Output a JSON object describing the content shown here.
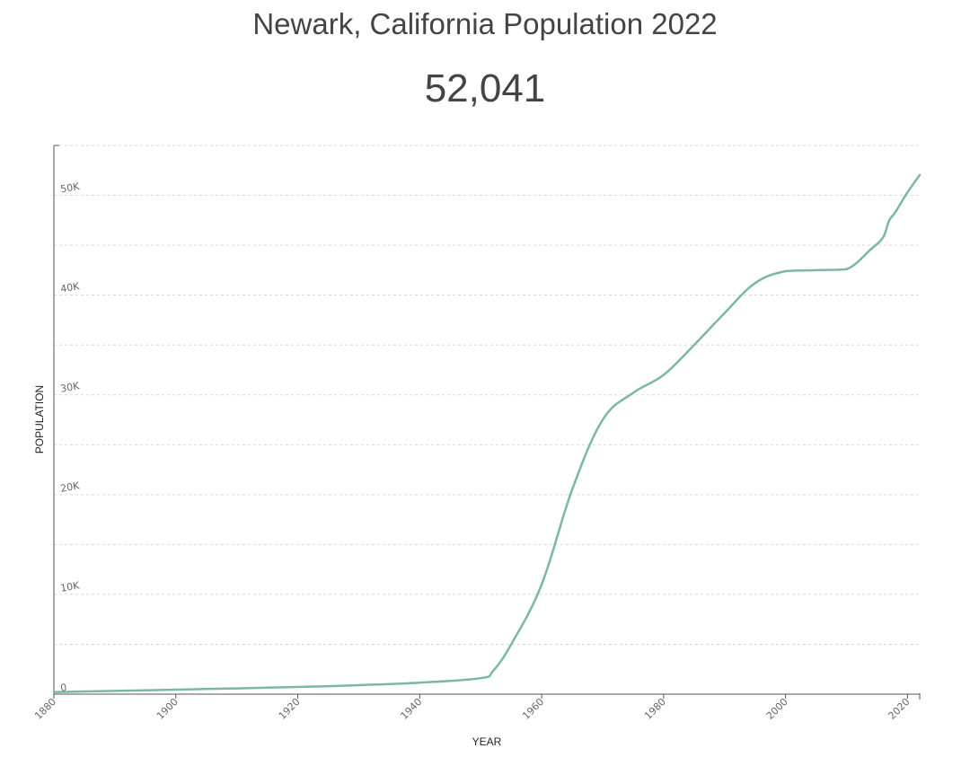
{
  "header": {
    "title": "Newark, California Population 2022",
    "population": "52,041"
  },
  "colors": {
    "line": "#7ab8a0",
    "grid": "#d8d8d8",
    "axis": "#555555"
  },
  "chart_data": {
    "type": "line",
    "title": "Newark, California Population 2022",
    "xlabel": "YEAR",
    "ylabel": "POPULATION",
    "xlim": [
      1880,
      2022
    ],
    "ylim": [
      0,
      55000
    ],
    "x_ticks": [
      1880,
      1900,
      1920,
      1940,
      1960,
      1980,
      2000,
      2020
    ],
    "y_ticks": [
      {
        "value": 0,
        "label": "0"
      },
      {
        "value": 10000,
        "label": "10K"
      },
      {
        "value": 20000,
        "label": "20K"
      },
      {
        "value": 30000,
        "label": "30K"
      },
      {
        "value": 40000,
        "label": "40K"
      },
      {
        "value": 50000,
        "label": "50K"
      }
    ],
    "grid": true,
    "grid_step": 5000,
    "series": [
      {
        "x": [
          1880,
          1890,
          1900,
          1910,
          1920,
          1930,
          1940,
          1950,
          1952,
          1955,
          1960,
          1965,
          1970,
          1975,
          1980,
          1985,
          1990,
          1995,
          2000,
          2005,
          2010,
          2014,
          2016,
          2017,
          2018,
          2020,
          2022
        ],
        "y": [
          200,
          320,
          450,
          580,
          720,
          900,
          1150,
          1600,
          2300,
          5000,
          11000,
          20500,
          27500,
          30200,
          32000,
          35000,
          38200,
          41200,
          42400,
          42500,
          42600,
          44600,
          45800,
          47500,
          48300,
          50300,
          52041
        ]
      }
    ]
  }
}
